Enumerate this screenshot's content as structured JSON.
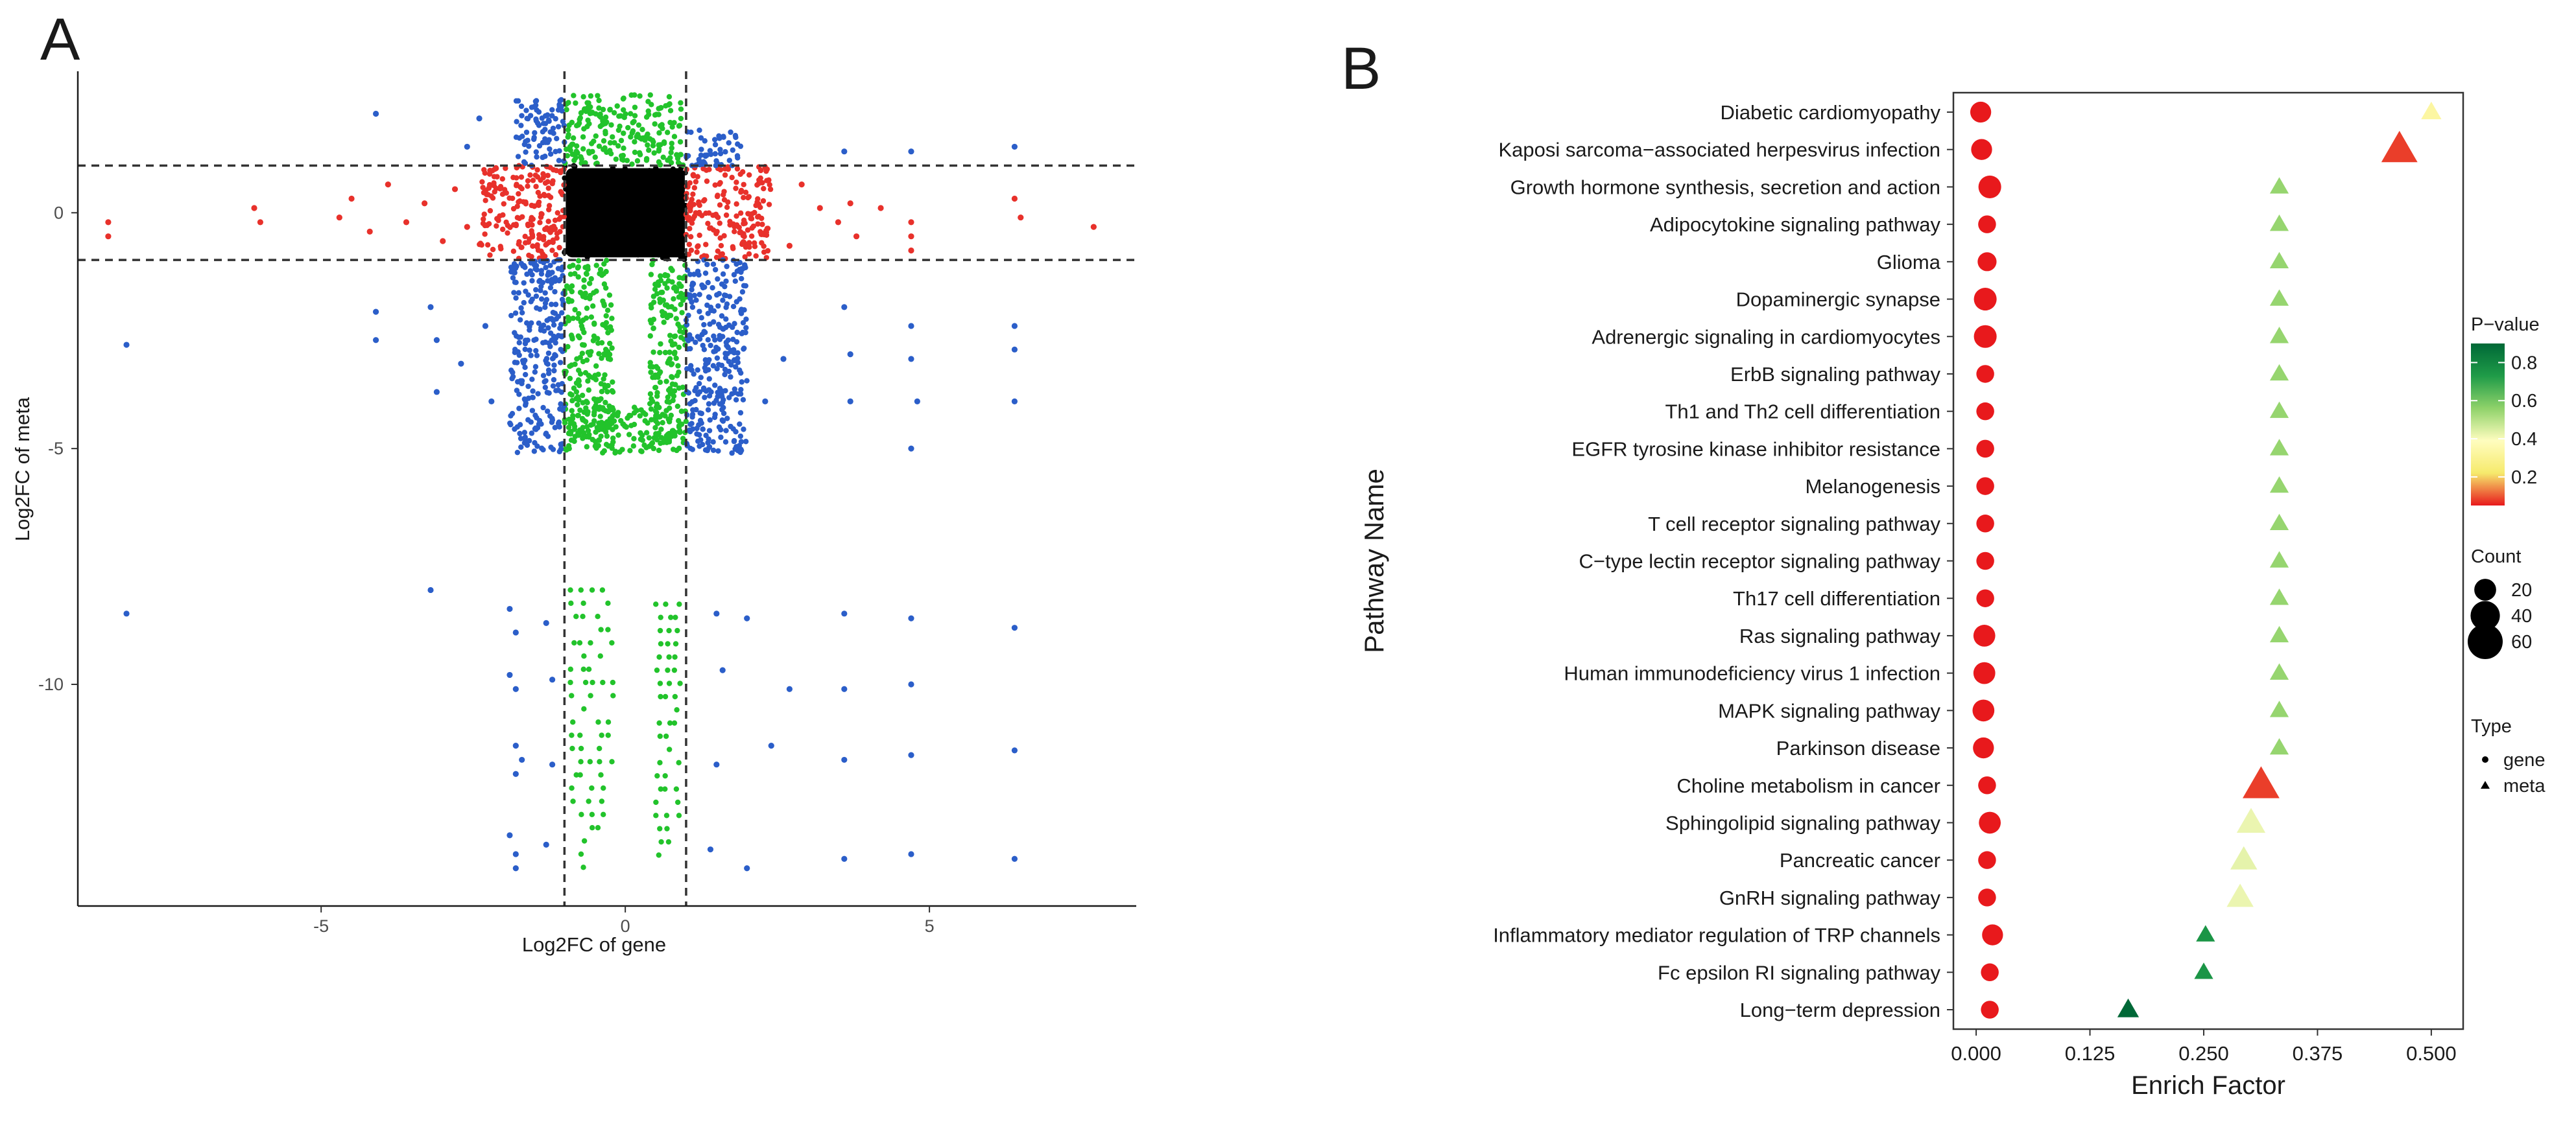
{
  "panels": {
    "a": "A",
    "b": "B"
  },
  "chart_data": [
    {
      "type": "scatter",
      "panel": "A",
      "xlabel": "Log2FC of gene",
      "ylabel": "Log2FC of meta",
      "xlim": [
        -9,
        8.4
      ],
      "ylim": [
        -14.7,
        3
      ],
      "xticks": [
        -5,
        0,
        5
      ],
      "yticks": [
        0,
        -5,
        -10
      ],
      "thresholds": {
        "x": [
          -1,
          1
        ],
        "y": [
          -1,
          1
        ]
      },
      "colors": {
        "both": "#2b5ec9",
        "gene_only": "#e8312b",
        "meta_only": "#22c32b",
        "neither": "#000000"
      },
      "dense_regions": [
        {
          "group": "neither",
          "x": [
            -1,
            1
          ],
          "y": [
            -1,
            1
          ]
        },
        {
          "group": "gene_only",
          "x": [
            -2.4,
            -1
          ],
          "y": [
            -1,
            1
          ]
        },
        {
          "group": "gene_only",
          "x": [
            1,
            2.4
          ],
          "y": [
            -1,
            1
          ]
        },
        {
          "group": "meta_only",
          "x": [
            -1,
            0.95
          ],
          "y": [
            1,
            2.5
          ]
        },
        {
          "group": "meta_only",
          "x": [
            -1,
            -0.2
          ],
          "y": [
            -4.9,
            -1
          ]
        },
        {
          "group": "meta_only",
          "x": [
            0.4,
            1
          ],
          "y": [
            -4.9,
            -1
          ]
        },
        {
          "group": "meta_only",
          "x": [
            -1,
            1
          ],
          "y": [
            -5.1,
            -4.1
          ]
        },
        {
          "group": "both",
          "x": [
            -1.9,
            -1
          ],
          "y": [
            -5.1,
            -1
          ]
        },
        {
          "group": "both",
          "x": [
            1,
            2
          ],
          "y": [
            -5.1,
            -1
          ]
        },
        {
          "group": "both",
          "x": [
            -1.8,
            -1
          ],
          "y": [
            1,
            2.4
          ]
        },
        {
          "group": "both",
          "x": [
            1,
            1.9
          ],
          "y": [
            1,
            1.8
          ]
        }
      ],
      "points": [
        [
          -8.5,
          -0.2,
          "gene_only"
        ],
        [
          -8.5,
          -0.5,
          "gene_only"
        ],
        [
          -6.1,
          0.1,
          "gene_only"
        ],
        [
          -6.0,
          -0.2,
          "gene_only"
        ],
        [
          -4.7,
          -0.1,
          "gene_only"
        ],
        [
          -4.5,
          0.3,
          "gene_only"
        ],
        [
          -4.2,
          -0.4,
          "gene_only"
        ],
        [
          -3.9,
          0.6,
          "gene_only"
        ],
        [
          -3.6,
          -0.2,
          "gene_only"
        ],
        [
          -3.3,
          0.2,
          "gene_only"
        ],
        [
          -3.0,
          -0.6,
          "gene_only"
        ],
        [
          -2.8,
          0.5,
          "gene_only"
        ],
        [
          -2.6,
          -0.3,
          "gene_only"
        ],
        [
          3.2,
          0.1,
          "gene_only"
        ],
        [
          3.5,
          -0.2,
          "gene_only"
        ],
        [
          3.7,
          0.2,
          "gene_only"
        ],
        [
          3.8,
          -0.5,
          "gene_only"
        ],
        [
          4.2,
          0.1,
          "gene_only"
        ],
        [
          4.7,
          -0.2,
          "gene_only"
        ],
        [
          4.7,
          -0.5,
          "gene_only"
        ],
        [
          4.7,
          -0.8,
          "gene_only"
        ],
        [
          6.4,
          0.3,
          "gene_only"
        ],
        [
          6.5,
          -0.1,
          "gene_only"
        ],
        [
          7.7,
          -0.3,
          "gene_only"
        ],
        [
          2.9,
          0.6,
          "gene_only"
        ],
        [
          2.7,
          -0.7,
          "gene_only"
        ],
        [
          -8.2,
          -2.8,
          "both"
        ],
        [
          -8.2,
          -8.5,
          "both"
        ],
        [
          -4.1,
          2.1,
          "both"
        ],
        [
          -4.1,
          -2.1,
          "both"
        ],
        [
          -4.1,
          -2.7,
          "both"
        ],
        [
          -3.2,
          -2.0,
          "both"
        ],
        [
          -3.1,
          -2.7,
          "both"
        ],
        [
          -3.1,
          -3.8,
          "both"
        ],
        [
          -3.2,
          -8.0,
          "both"
        ],
        [
          -2.7,
          -3.2,
          "both"
        ],
        [
          -2.6,
          1.4,
          "both"
        ],
        [
          -2.3,
          -2.4,
          "both"
        ],
        [
          -2.2,
          -4.0,
          "both"
        ],
        [
          -2.4,
          2.0,
          "both"
        ],
        [
          -1.9,
          -8.4,
          "both"
        ],
        [
          -1.8,
          -8.9,
          "both"
        ],
        [
          -1.9,
          -9.8,
          "both"
        ],
        [
          -1.8,
          -10.1,
          "both"
        ],
        [
          -1.8,
          -11.3,
          "both"
        ],
        [
          -1.7,
          -11.6,
          "both"
        ],
        [
          -1.8,
          -11.9,
          "both"
        ],
        [
          -1.9,
          -13.2,
          "both"
        ],
        [
          -1.8,
          -13.6,
          "both"
        ],
        [
          -1.8,
          -13.9,
          "both"
        ],
        [
          -1.3,
          -8.7,
          "both"
        ],
        [
          -1.2,
          -9.9,
          "both"
        ],
        [
          -1.2,
          -11.7,
          "both"
        ],
        [
          -1.3,
          -13.4,
          "both"
        ],
        [
          2.7,
          -10.1,
          "both"
        ],
        [
          2.4,
          -11.3,
          "both"
        ],
        [
          2.3,
          -4.0,
          "both"
        ],
        [
          2.6,
          -3.1,
          "both"
        ],
        [
          3.6,
          1.3,
          "both"
        ],
        [
          3.6,
          -2.0,
          "both"
        ],
        [
          3.7,
          -3.0,
          "both"
        ],
        [
          3.7,
          -4.0,
          "both"
        ],
        [
          3.6,
          -8.5,
          "both"
        ],
        [
          3.6,
          -10.1,
          "both"
        ],
        [
          3.6,
          -11.6,
          "both"
        ],
        [
          3.6,
          -13.7,
          "both"
        ],
        [
          4.7,
          1.3,
          "both"
        ],
        [
          4.7,
          -2.4,
          "both"
        ],
        [
          4.7,
          -3.1,
          "both"
        ],
        [
          4.8,
          -4.0,
          "both"
        ],
        [
          4.7,
          -5.0,
          "both"
        ],
        [
          4.7,
          -8.6,
          "both"
        ],
        [
          4.7,
          -10.0,
          "both"
        ],
        [
          4.7,
          -11.5,
          "both"
        ],
        [
          4.7,
          -13.6,
          "both"
        ],
        [
          6.4,
          1.4,
          "both"
        ],
        [
          6.4,
          -2.4,
          "both"
        ],
        [
          6.4,
          -2.9,
          "both"
        ],
        [
          6.4,
          -4.0,
          "both"
        ],
        [
          6.4,
          -8.8,
          "both"
        ],
        [
          6.4,
          -11.4,
          "both"
        ],
        [
          6.4,
          -13.7,
          "both"
        ],
        [
          1.5,
          -8.5,
          "both"
        ],
        [
          1.6,
          -9.7,
          "both"
        ],
        [
          1.5,
          -11.7,
          "both"
        ],
        [
          1.4,
          -13.5,
          "both"
        ],
        [
          2.0,
          -8.6,
          "both"
        ],
        [
          2.0,
          -13.9,
          "both"
        ]
      ],
      "vertical_streaks": [
        {
          "x": -0.85,
          "y": [
            -12.5,
            -8
          ]
        },
        {
          "x": -0.7,
          "y": [
            -13.9,
            -8
          ]
        },
        {
          "x": -0.55,
          "y": [
            -13.9,
            -8
          ]
        },
        {
          "x": -0.4,
          "y": [
            -13.5,
            -8
          ]
        },
        {
          "x": -0.25,
          "y": [
            -12.0,
            -8
          ]
        },
        {
          "x": 0.55,
          "y": [
            -13.9,
            -8.3
          ]
        },
        {
          "x": 0.7,
          "y": [
            -13.5,
            -8.3
          ]
        },
        {
          "x": 0.85,
          "y": [
            -12.8,
            -8.3
          ]
        }
      ]
    },
    {
      "type": "scatter",
      "panel": "B",
      "xlabel": "Enrich Factor",
      "ylabel": "Pathway Name",
      "xlim": [
        -0.025,
        0.535
      ],
      "xticks": [
        "0.000",
        "0.125",
        "0.250",
        "0.375",
        "0.500"
      ],
      "categories": [
        "Diabetic cardiomyopathy",
        "Kaposi sarcoma−associated herpesvirus infection",
        "Growth hormone synthesis, secretion and action",
        "Adipocytokine signaling pathway",
        "Glioma",
        "Dopaminergic synapse",
        "Adrenergic signaling in cardiomyocytes",
        "ErbB signaling pathway",
        "Th1 and Th2 cell differentiation",
        "EGFR tyrosine kinase inhibitor resistance",
        "Melanogenesis",
        "T cell receptor signaling pathway",
        "C−type lectin receptor signaling pathway",
        "Th17 cell differentiation",
        "Ras signaling pathway",
        "Human immunodeficiency virus 1 infection",
        "MAPK signaling pathway",
        "Parkinson disease",
        "Choline metabolism in cancer",
        "Sphingolipid signaling pathway",
        "Pancreatic cancer",
        "GnRH signaling pathway",
        "Inflammatory mediator regulation of TRP channels",
        "Fc epsilon RI signaling pathway",
        "Long−term depression"
      ],
      "series": [
        {
          "name": "gene",
          "shape": "circle",
          "values": [
            0.005,
            0.006,
            0.015,
            0.012,
            0.012,
            0.01,
            0.01,
            0.01,
            0.01,
            0.01,
            0.01,
            0.01,
            0.01,
            0.01,
            0.009,
            0.009,
            0.008,
            0.008,
            0.012,
            0.015,
            0.012,
            0.012,
            0.018,
            0.015,
            0.015
          ],
          "count": [
            18,
            18,
            22,
            12,
            14,
            22,
            22,
            12,
            12,
            12,
            12,
            12,
            12,
            12,
            20,
            20,
            20,
            18,
            12,
            20,
            12,
            12,
            18,
            12,
            12
          ],
          "pvalue": [
            0.02,
            0.02,
            0.02,
            0.02,
            0.02,
            0.02,
            0.02,
            0.02,
            0.02,
            0.02,
            0.02,
            0.02,
            0.02,
            0.02,
            0.02,
            0.02,
            0.02,
            0.02,
            0.02,
            0.02,
            0.02,
            0.02,
            0.02,
            0.02,
            0.02
          ]
        },
        {
          "name": "meta",
          "shape": "triangle",
          "values": [
            0.5,
            0.465,
            0.333,
            0.333,
            0.333,
            0.333,
            0.333,
            0.333,
            0.333,
            0.333,
            0.333,
            0.333,
            0.333,
            0.333,
            0.333,
            0.333,
            0.333,
            0.333,
            0.313,
            0.302,
            0.294,
            0.29,
            0.252,
            0.25,
            0.167
          ],
          "count": [
            12,
            48,
            10,
            10,
            10,
            10,
            10,
            10,
            10,
            10,
            10,
            10,
            10,
            10,
            10,
            10,
            10,
            10,
            50,
            28,
            24,
            24,
            10,
            10,
            14
          ],
          "pvalue": [
            0.33,
            0.08,
            0.55,
            0.55,
            0.55,
            0.55,
            0.55,
            0.55,
            0.55,
            0.55,
            0.55,
            0.55,
            0.55,
            0.55,
            0.55,
            0.55,
            0.55,
            0.55,
            0.08,
            0.42,
            0.43,
            0.42,
            0.75,
            0.75,
            0.95
          ]
        }
      ],
      "legend": {
        "pvalue_title": "P−value",
        "pvalue_ticks": [
          "0.8",
          "0.6",
          "0.4",
          "0.2"
        ],
        "pvalue_tick_values": [
          0.8,
          0.6,
          0.4,
          0.2
        ],
        "pvalue_range": [
          0.05,
          0.9
        ],
        "colors": [
          "#e8191c",
          "#f6ea6c",
          "#fffdbf",
          "#8fd26a",
          "#1f9b48",
          "#006837"
        ],
        "count_title": "Count",
        "count_values": [
          "20",
          "40",
          "60"
        ],
        "type_title": "Type",
        "type_values": [
          "gene",
          "meta"
        ],
        "placement": "right"
      }
    }
  ]
}
